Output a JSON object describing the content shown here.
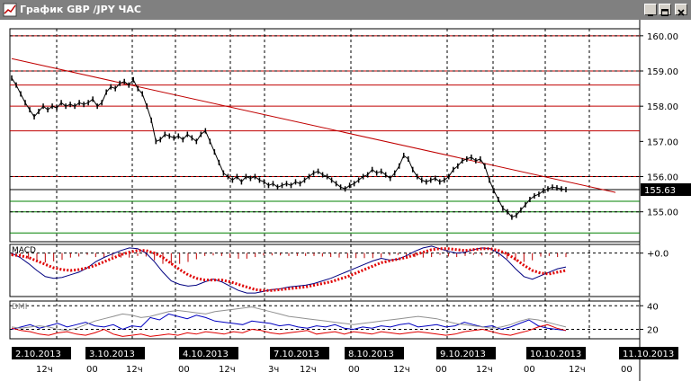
{
  "window": {
    "title": "График GBP /JPY  ЧАС"
  },
  "colors": {
    "titlebar": "#808080",
    "price_line": "#000000",
    "trendline": "#c00000",
    "resistance_levels": "#c00000",
    "support_levels": "#008000",
    "macd_line": "#000080",
    "macd_signal": "#e00000",
    "dmi_plus": "#0000c0",
    "dmi_minus": "#e00000",
    "adx": "#909090"
  },
  "chart_data": [
    {
      "type": "line",
      "panel": "price",
      "y_ticks": [
        "160.00",
        "159.00",
        "158.00",
        "157.00",
        "156.00",
        "155.00"
      ],
      "ylim": [
        154.15,
        160.2
      ],
      "current_price_label": "155.63",
      "current_price": 155.63,
      "resistance_levels": [
        160.0,
        159.0,
        158.6,
        158.0,
        157.3,
        156.0
      ],
      "support_levels": [
        155.3,
        155.0,
        154.4
      ],
      "trendline": {
        "from": {
          "x": 0,
          "y": 159.35
        },
        "to": {
          "x": 134,
          "y": 155.55
        }
      },
      "series": [
        {
          "values": [
            158.8,
            158.6,
            158.35,
            158.1,
            157.9,
            157.7,
            157.85,
            158.0,
            157.9,
            158.0,
            157.95,
            158.1,
            158.0,
            158.05,
            158.0,
            158.1,
            158.05,
            158.1,
            158.2,
            158.0,
            158.1,
            158.4,
            158.55,
            158.5,
            158.65,
            158.7,
            158.6,
            158.75,
            158.5,
            158.35,
            158.0,
            157.6,
            157.0,
            157.05,
            157.2,
            157.15,
            157.1,
            157.15,
            157.05,
            157.2,
            157.1,
            157.0,
            157.2,
            157.3,
            157.0,
            156.7,
            156.4,
            156.1,
            156.0,
            155.9,
            156.0,
            155.85,
            156.0,
            155.95,
            156.0,
            155.9,
            155.85,
            155.75,
            155.8,
            155.7,
            155.75,
            155.8,
            155.75,
            155.85,
            155.8,
            155.9,
            156.0,
            156.1,
            156.15,
            156.05,
            156.0,
            155.9,
            155.8,
            155.7,
            155.65,
            155.75,
            155.8,
            155.9,
            156.0,
            156.05,
            156.2,
            156.1,
            156.15,
            156.05,
            155.95,
            156.1,
            156.3,
            156.6,
            156.5,
            156.2,
            156.0,
            155.9,
            155.85,
            155.9,
            155.95,
            155.85,
            155.9,
            156.0,
            156.2,
            156.3,
            156.45,
            156.5,
            156.55,
            156.45,
            156.5,
            156.3,
            155.9,
            155.6,
            155.35,
            155.1,
            155.0,
            154.85,
            154.9,
            155.05,
            155.2,
            155.35,
            155.45,
            155.5,
            155.6,
            155.65,
            155.7,
            155.68,
            155.65,
            155.63
          ]
        }
      ]
    },
    {
      "type": "line",
      "panel": "MACD",
      "title": "MACD",
      "y_ticks": [
        "+0.0"
      ],
      "ylim": [
        -0.5,
        0.1
      ],
      "series": [
        {
          "values": [
            0.0,
            -0.05,
            -0.12,
            -0.2,
            -0.27,
            -0.29,
            -0.28,
            -0.25,
            -0.22,
            -0.17,
            -0.1,
            -0.05,
            -0.01,
            0.03,
            0.06,
            0.05,
            0.0,
            -0.1,
            -0.22,
            -0.32,
            -0.36,
            -0.38,
            -0.37,
            -0.33,
            -0.3,
            -0.33,
            -0.38,
            -0.43,
            -0.46,
            -0.46,
            -0.44,
            -0.42,
            -0.41,
            -0.39,
            -0.38,
            -0.37,
            -0.35,
            -0.32,
            -0.29,
            -0.25,
            -0.21,
            -0.17,
            -0.13,
            -0.09,
            -0.06,
            -0.08,
            -0.07,
            -0.03,
            0.02,
            0.06,
            0.08,
            0.05,
            0.02,
            0.0,
            0.01,
            0.04,
            0.06,
            0.05,
            0.0,
            -0.08,
            -0.18,
            -0.27,
            -0.3,
            -0.26,
            -0.22,
            -0.18,
            -0.16
          ]
        },
        {
          "values": [
            -0.02,
            -0.03,
            -0.05,
            -0.09,
            -0.13,
            -0.17,
            -0.19,
            -0.2,
            -0.19,
            -0.17,
            -0.14,
            -0.1,
            -0.06,
            -0.02,
            0.01,
            0.03,
            0.03,
            0.0,
            -0.05,
            -0.12,
            -0.19,
            -0.25,
            -0.29,
            -0.31,
            -0.31,
            -0.31,
            -0.33,
            -0.36,
            -0.39,
            -0.42,
            -0.43,
            -0.43,
            -0.42,
            -0.41,
            -0.4,
            -0.39,
            -0.37,
            -0.35,
            -0.33,
            -0.3,
            -0.27,
            -0.23,
            -0.19,
            -0.15,
            -0.11,
            -0.09,
            -0.07,
            -0.05,
            -0.02,
            0.01,
            0.04,
            0.05,
            0.05,
            0.04,
            0.03,
            0.04,
            0.05,
            0.05,
            0.03,
            -0.01,
            -0.07,
            -0.14,
            -0.2,
            -0.23,
            -0.24,
            -0.22,
            -0.2
          ]
        }
      ]
    },
    {
      "type": "line",
      "panel": "DMI",
      "title": "DMI",
      "y_ticks": [
        "40",
        "20"
      ],
      "ylim": [
        12,
        44
      ],
      "series": [
        {
          "values": [
            20,
            22,
            24,
            21,
            23,
            25,
            22,
            24,
            26,
            23,
            22,
            24,
            20,
            23,
            22,
            30,
            28,
            33,
            31,
            29,
            32,
            30,
            27,
            26,
            25,
            24,
            27,
            26,
            25,
            23,
            24,
            22,
            21,
            23,
            22,
            24,
            21,
            20,
            22,
            21,
            23,
            22,
            24,
            25,
            22,
            23,
            24,
            22,
            23,
            26,
            24,
            22,
            23,
            20,
            22,
            25,
            28,
            23,
            21,
            20,
            19
          ]
        },
        {
          "values": [
            21,
            19,
            18,
            16,
            15,
            17,
            18,
            16,
            15,
            17,
            20,
            16,
            14,
            15,
            16,
            14,
            15,
            16,
            15,
            17,
            16,
            18,
            17,
            16,
            18,
            17,
            20,
            19,
            17,
            16,
            17,
            18,
            19,
            16,
            17,
            18,
            16,
            18,
            17,
            16,
            18,
            17,
            16,
            17,
            18,
            17,
            16,
            15,
            16,
            18,
            19,
            20,
            18,
            16,
            15,
            17,
            19,
            22,
            24,
            21,
            19
          ]
        },
        {
          "values": [
            22,
            21,
            22,
            23,
            22,
            20,
            19,
            21,
            24,
            27,
            29,
            31,
            33,
            32,
            30,
            31,
            33,
            35,
            36,
            35,
            34,
            33,
            35,
            36,
            37,
            38,
            39,
            37,
            35,
            33,
            31,
            30,
            29,
            28,
            27,
            26,
            25,
            24,
            25,
            26,
            27,
            28,
            29,
            30,
            31,
            30,
            29,
            27,
            25,
            24,
            23,
            22,
            21,
            22,
            24,
            27,
            29,
            28,
            26,
            24,
            22
          ]
        }
      ]
    }
  ],
  "x_axis": {
    "dates": [
      "2.10.2013",
      "3.10.2013",
      "4.10.2013",
      "7.10.2013",
      "8.10.2013",
      "9.10.2013",
      "10.10.2013",
      "11.10.2013"
    ],
    "hours": [
      "12ч",
      "00",
      "12ч",
      "00",
      "12ч",
      "3ч",
      "12ч",
      "00",
      "12ч",
      "00",
      "12ч",
      "00",
      "12ч",
      "00"
    ]
  }
}
